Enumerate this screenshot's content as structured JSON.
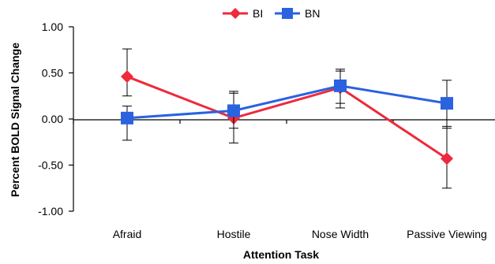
{
  "chart_data": {
    "type": "line",
    "categories": [
      "Afraid",
      "Hostile",
      "Nose Width",
      "Passive Viewing"
    ],
    "series": [
      {
        "name": "BI",
        "color": "#ee2a3c",
        "marker": "diamond",
        "values": [
          0.46,
          0.01,
          0.34,
          -0.43
        ],
        "err_low": [
          0.25,
          -0.26,
          0.12,
          -0.75
        ],
        "err_high": [
          0.76,
          0.28,
          0.54,
          -0.08
        ]
      },
      {
        "name": "BN",
        "color": "#2a62e0",
        "marker": "square",
        "values": [
          0.01,
          0.09,
          0.36,
          0.17
        ],
        "err_low": [
          -0.23,
          -0.1,
          0.17,
          -0.1
        ],
        "err_high": [
          0.14,
          0.3,
          0.52,
          0.42
        ]
      }
    ],
    "ylim": [
      -1.0,
      1.0
    ],
    "yticks": [
      "1.00",
      "0.50",
      "0.00",
      "-0.50",
      "-1.00"
    ],
    "ytick_values": [
      1.0,
      0.5,
      0.0,
      -0.5,
      -1.0
    ],
    "xlabel": "Attention Task",
    "ylabel": "Percent BOLD Signal Change",
    "legend_position": "top-center",
    "grid": false
  }
}
